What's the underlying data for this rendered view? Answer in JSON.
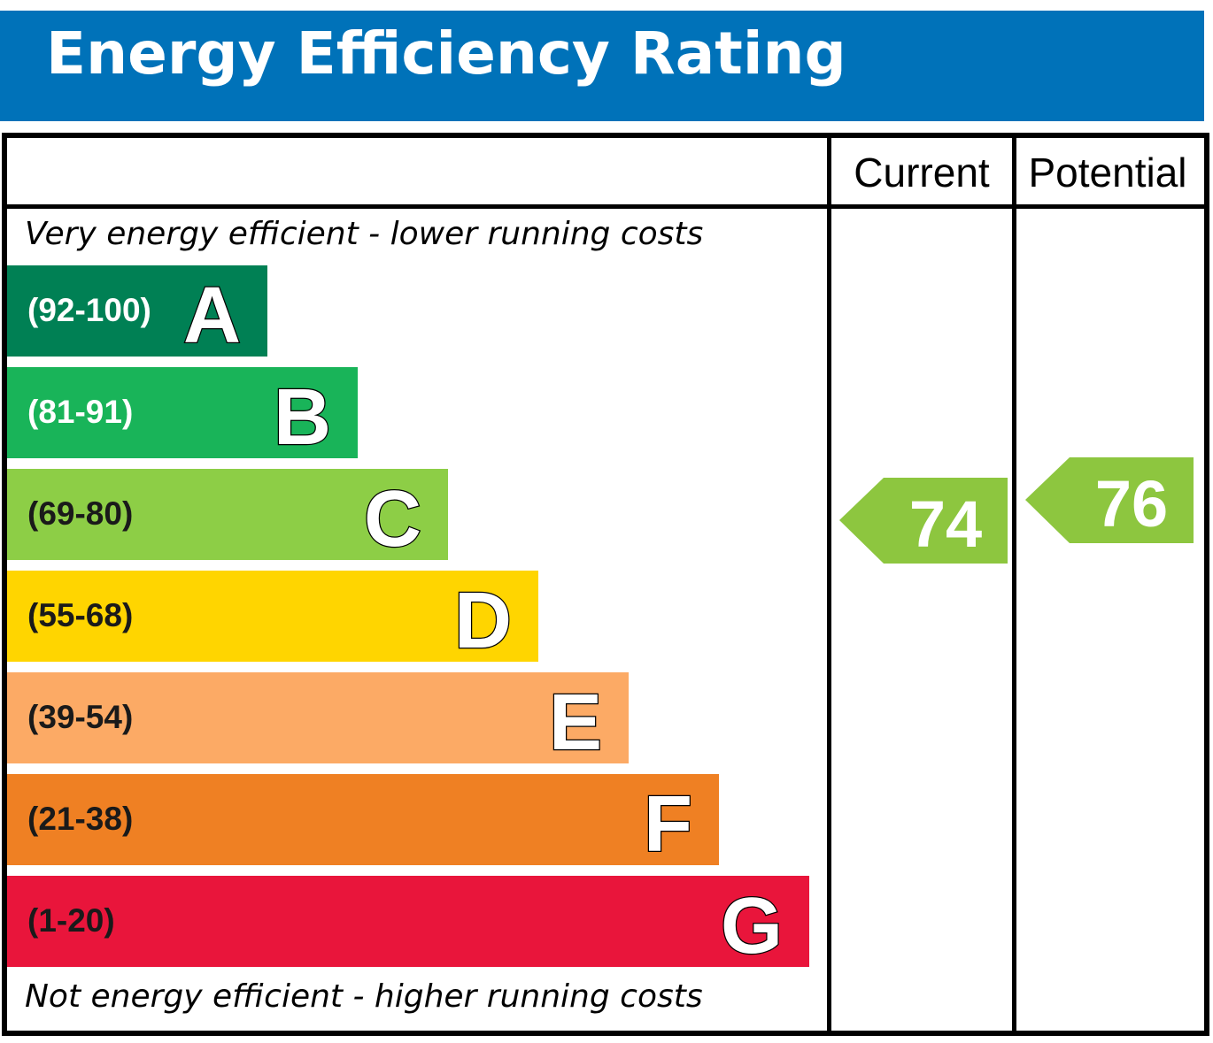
{
  "title": "Energy Efficiency Rating",
  "columns": {
    "current": "Current",
    "potential": "Potential"
  },
  "top_note": "Very energy efficient - lower running costs",
  "bottom_note": "Not energy efficient - higher running costs",
  "chart_data": {
    "type": "bar",
    "title": "Energy Efficiency Rating",
    "bands": [
      {
        "letter": "A",
        "range": "(92-100)",
        "color": "#008054",
        "text_color": "#ffffff"
      },
      {
        "letter": "B",
        "range": "(81-91)",
        "color": "#19b459",
        "text_color": "#ffffff"
      },
      {
        "letter": "C",
        "range": "(69-80)",
        "color": "#8dce46",
        "text_color": "#1a1a1a"
      },
      {
        "letter": "D",
        "range": "(55-68)",
        "color": "#ffd500",
        "text_color": "#1a1a1a"
      },
      {
        "letter": "E",
        "range": "(39-54)",
        "color": "#fcaa65",
        "text_color": "#1a1a1a"
      },
      {
        "letter": "F",
        "range": "(21-38)",
        "color": "#ef8023",
        "text_color": "#1a1a1a"
      },
      {
        "letter": "G",
        "range": "(1-20)",
        "color": "#e9153b",
        "text_color": "#1a1a1a"
      }
    ],
    "current": {
      "value": "74",
      "band": "C",
      "color": "#8dc63f"
    },
    "potential": {
      "value": "76",
      "band": "C",
      "color": "#8dc63f"
    }
  }
}
